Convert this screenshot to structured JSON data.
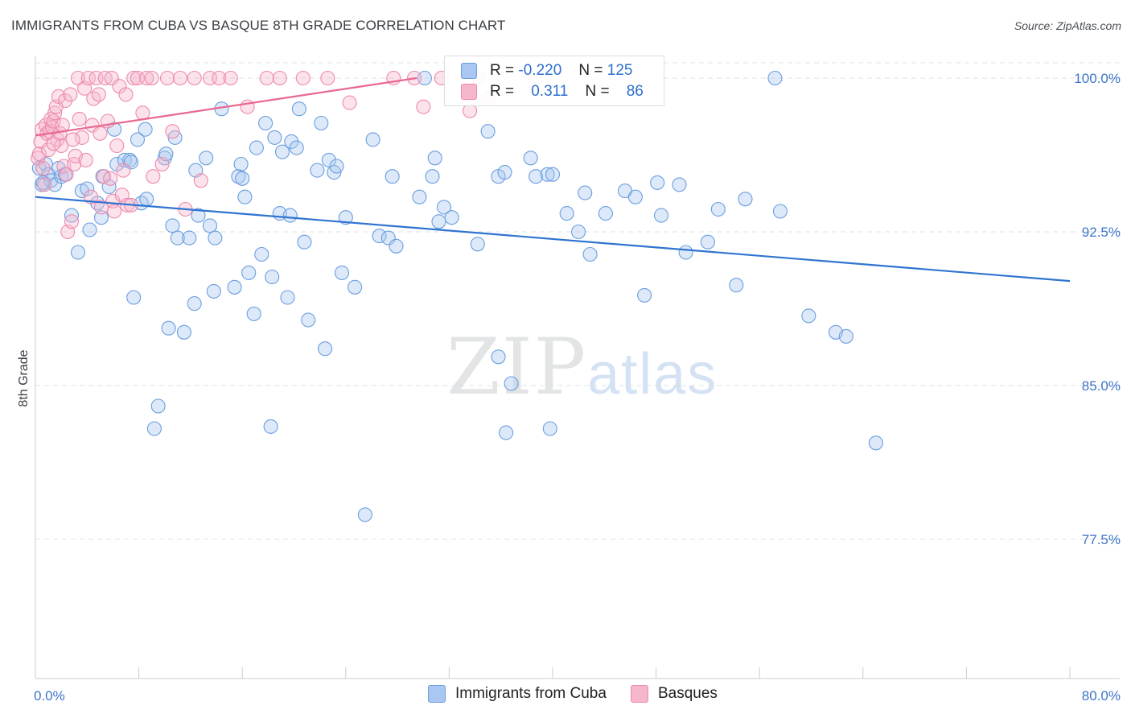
{
  "title": "IMMIGRANTS FROM CUBA VS BASQUE 8TH GRADE CORRELATION CHART",
  "source": "Source: ZipAtlas.com",
  "watermark": {
    "zip": "ZIP",
    "atlas": "atlas"
  },
  "legend": {
    "r_label": "R =",
    "n_label": "N =",
    "rows": [
      {
        "r": "-0.220",
        "n": "125"
      },
      {
        "r": "0.311",
        "n": "86"
      }
    ]
  },
  "bottom_legend": [
    "Immigrants from Cuba",
    "Basques"
  ],
  "colors": {
    "cuba_fill": "#a9c7f0",
    "cuba_stroke": "#6a9ee0",
    "cuba_line": "#2f74d0",
    "basque_fill": "#f6b6cc",
    "basque_stroke": "#ee8aad",
    "basque_line": "#e8688f",
    "grid": "#dde1e6",
    "tick_label": "#3d74c9"
  },
  "chart_data": {
    "type": "scatter",
    "title": "IMMIGRANTS FROM CUBA VS BASQUE 8TH GRADE CORRELATION CHART",
    "xlabel": "",
    "ylabel": "8th Grade",
    "xlim": [
      0,
      80
    ],
    "ylim": [
      70,
      100.8
    ],
    "x_tick_labels": [
      "0.0%",
      "80.0%"
    ],
    "y_ticks": [
      77.5,
      85.0,
      92.5,
      100.0
    ],
    "y_tick_labels": [
      "77.5%",
      "85.0%",
      "92.5%",
      "100.0%"
    ],
    "grid": true,
    "series": [
      {
        "name": "Immigrants from Cuba",
        "r": -0.22,
        "n": 125,
        "trend": {
          "x": [
            0,
            80
          ],
          "y": [
            94.2,
            90.1
          ]
        },
        "points": [
          [
            0.3,
            95.6
          ],
          [
            0.5,
            94.8
          ],
          [
            0.8,
            95.8
          ],
          [
            1.0,
            95.3
          ],
          [
            1.2,
            95.0
          ],
          [
            1.5,
            94.8
          ],
          [
            1.8,
            95.6
          ],
          [
            2.0,
            95.2
          ],
          [
            2.3,
            95.3
          ],
          [
            2.8,
            93.3
          ],
          [
            3.3,
            91.5
          ],
          [
            3.6,
            94.5
          ],
          [
            4.0,
            94.6
          ],
          [
            4.2,
            92.6
          ],
          [
            4.8,
            93.9
          ],
          [
            5.2,
            95.2
          ],
          [
            5.1,
            93.2
          ],
          [
            5.7,
            94.7
          ],
          [
            6.1,
            97.5
          ],
          [
            6.3,
            95.8
          ],
          [
            6.9,
            96.0
          ],
          [
            7.3,
            96.0
          ],
          [
            7.4,
            95.9
          ],
          [
            7.6,
            89.3
          ],
          [
            7.9,
            97.0
          ],
          [
            8.2,
            93.9
          ],
          [
            8.5,
            97.5
          ],
          [
            8.6,
            94.1
          ],
          [
            9.5,
            84.0
          ],
          [
            9.2,
            82.9
          ],
          [
            10.0,
            96.1
          ],
          [
            10.1,
            96.3
          ],
          [
            10.3,
            87.8
          ],
          [
            10.6,
            92.8
          ],
          [
            10.8,
            97.1
          ],
          [
            11.0,
            92.2
          ],
          [
            11.5,
            87.6
          ],
          [
            11.9,
            92.2
          ],
          [
            12.3,
            89.0
          ],
          [
            12.4,
            95.5
          ],
          [
            12.6,
            93.3
          ],
          [
            13.2,
            96.1
          ],
          [
            13.5,
            92.8
          ],
          [
            13.8,
            89.6
          ],
          [
            13.9,
            92.2
          ],
          [
            14.4,
            98.5
          ],
          [
            15.4,
            89.8
          ],
          [
            15.7,
            95.2
          ],
          [
            15.9,
            95.8
          ],
          [
            16.0,
            95.1
          ],
          [
            16.2,
            94.2
          ],
          [
            16.5,
            90.5
          ],
          [
            16.9,
            88.5
          ],
          [
            17.1,
            96.6
          ],
          [
            17.5,
            91.4
          ],
          [
            17.8,
            97.8
          ],
          [
            18.2,
            83.0
          ],
          [
            18.3,
            90.3
          ],
          [
            18.5,
            97.1
          ],
          [
            18.9,
            93.4
          ],
          [
            19.1,
            96.4
          ],
          [
            19.5,
            89.3
          ],
          [
            19.7,
            93.3
          ],
          [
            19.8,
            96.9
          ],
          [
            20.2,
            96.6
          ],
          [
            20.4,
            98.5
          ],
          [
            20.8,
            92.0
          ],
          [
            21.1,
            88.2
          ],
          [
            21.8,
            95.5
          ],
          [
            22.1,
            97.8
          ],
          [
            22.4,
            86.8
          ],
          [
            22.7,
            96.0
          ],
          [
            23.1,
            95.4
          ],
          [
            23.3,
            95.7
          ],
          [
            23.7,
            90.5
          ],
          [
            24.0,
            93.2
          ],
          [
            24.7,
            89.8
          ],
          [
            25.5,
            78.7
          ],
          [
            26.1,
            97.0
          ],
          [
            26.6,
            92.3
          ],
          [
            27.3,
            92.2
          ],
          [
            27.6,
            95.2
          ],
          [
            27.9,
            91.8
          ],
          [
            29.7,
            94.2
          ],
          [
            30.1,
            100.0
          ],
          [
            30.7,
            95.2
          ],
          [
            30.9,
            96.1
          ],
          [
            31.2,
            93.0
          ],
          [
            31.6,
            93.7
          ],
          [
            32.2,
            93.2
          ],
          [
            34.2,
            91.9
          ],
          [
            35.0,
            97.4
          ],
          [
            35.8,
            86.4
          ],
          [
            35.8,
            95.2
          ],
          [
            36.3,
            95.4
          ],
          [
            36.8,
            85.1
          ],
          [
            36.4,
            82.7
          ],
          [
            38.3,
            96.1
          ],
          [
            38.7,
            95.2
          ],
          [
            39.6,
            95.3
          ],
          [
            40.0,
            95.3
          ],
          [
            39.8,
            82.9
          ],
          [
            41.1,
            93.4
          ],
          [
            42.0,
            92.5
          ],
          [
            42.5,
            94.4
          ],
          [
            42.9,
            91.4
          ],
          [
            44.1,
            93.4
          ],
          [
            45.6,
            94.5
          ],
          [
            46.4,
            94.2
          ],
          [
            47.1,
            89.4
          ],
          [
            48.1,
            94.9
          ],
          [
            48.4,
            93.3
          ],
          [
            49.8,
            94.8
          ],
          [
            50.3,
            91.5
          ],
          [
            52.0,
            92.0
          ],
          [
            52.8,
            93.6
          ],
          [
            54.2,
            89.9
          ],
          [
            54.9,
            94.1
          ],
          [
            57.2,
            100.0
          ],
          [
            57.6,
            93.5
          ],
          [
            59.8,
            88.4
          ],
          [
            61.9,
            87.6
          ],
          [
            62.7,
            87.4
          ],
          [
            65.0,
            82.2
          ],
          [
            0.6,
            94.9
          ]
        ]
      },
      {
        "name": "Basques",
        "r": 0.311,
        "n": 86,
        "trend": {
          "x": [
            0,
            29.5
          ],
          "y": [
            97.2,
            100.0
          ]
        },
        "points": [
          [
            0.2,
            96.1
          ],
          [
            0.3,
            96.3
          ],
          [
            0.4,
            96.9
          ],
          [
            0.5,
            97.5
          ],
          [
            0.6,
            95.6
          ],
          [
            0.7,
            94.8
          ],
          [
            0.8,
            97.7
          ],
          [
            0.9,
            97.3
          ],
          [
            1.0,
            96.5
          ],
          [
            1.1,
            97.4
          ],
          [
            1.2,
            98.0
          ],
          [
            1.3,
            97.6
          ],
          [
            1.4,
            97.9
          ],
          [
            1.5,
            98.3
          ],
          [
            1.6,
            98.6
          ],
          [
            1.7,
            97.0
          ],
          [
            1.8,
            99.1
          ],
          [
            1.9,
            97.3
          ],
          [
            2.0,
            96.7
          ],
          [
            2.1,
            97.7
          ],
          [
            2.2,
            95.7
          ],
          [
            2.3,
            98.9
          ],
          [
            2.4,
            95.3
          ],
          [
            2.5,
            92.5
          ],
          [
            2.7,
            99.2
          ],
          [
            2.8,
            93.0
          ],
          [
            3.0,
            95.8
          ],
          [
            3.1,
            96.2
          ],
          [
            3.3,
            100.0
          ],
          [
            3.4,
            98.0
          ],
          [
            3.6,
            97.1
          ],
          [
            3.8,
            99.5
          ],
          [
            3.9,
            96.0
          ],
          [
            4.1,
            100.0
          ],
          [
            4.3,
            94.2
          ],
          [
            4.4,
            97.7
          ],
          [
            4.5,
            99.0
          ],
          [
            4.7,
            100.0
          ],
          [
            4.9,
            99.2
          ],
          [
            5.0,
            97.3
          ],
          [
            5.1,
            93.7
          ],
          [
            5.3,
            95.2
          ],
          [
            5.4,
            100.0
          ],
          [
            5.6,
            97.9
          ],
          [
            5.8,
            95.1
          ],
          [
            5.9,
            100.0
          ],
          [
            6.0,
            94.0
          ],
          [
            6.1,
            93.5
          ],
          [
            6.3,
            96.7
          ],
          [
            6.5,
            99.6
          ],
          [
            6.7,
            94.3
          ],
          [
            6.8,
            95.5
          ],
          [
            7.0,
            99.2
          ],
          [
            7.1,
            93.8
          ],
          [
            7.4,
            93.8
          ],
          [
            7.6,
            100.0
          ],
          [
            7.9,
            100.0
          ],
          [
            8.3,
            98.3
          ],
          [
            8.6,
            100.0
          ],
          [
            9.0,
            100.0
          ],
          [
            9.8,
            95.8
          ],
          [
            9.1,
            95.2
          ],
          [
            10.2,
            100.0
          ],
          [
            10.6,
            97.4
          ],
          [
            11.2,
            100.0
          ],
          [
            11.6,
            93.6
          ],
          [
            12.3,
            100.0
          ],
          [
            12.8,
            95.0
          ],
          [
            13.5,
            100.0
          ],
          [
            14.2,
            100.0
          ],
          [
            15.1,
            100.0
          ],
          [
            16.4,
            98.6
          ],
          [
            17.9,
            100.0
          ],
          [
            18.9,
            100.0
          ],
          [
            20.7,
            100.0
          ],
          [
            22.6,
            100.0
          ],
          [
            24.3,
            98.8
          ],
          [
            27.7,
            100.0
          ],
          [
            29.3,
            100.0
          ],
          [
            30.0,
            98.6
          ],
          [
            31.4,
            100.0
          ],
          [
            33.6,
            98.4
          ],
          [
            34.2,
            100.0
          ],
          [
            35.0,
            99.0
          ],
          [
            1.4,
            96.8
          ],
          [
            2.9,
            97.0
          ]
        ]
      }
    ]
  }
}
